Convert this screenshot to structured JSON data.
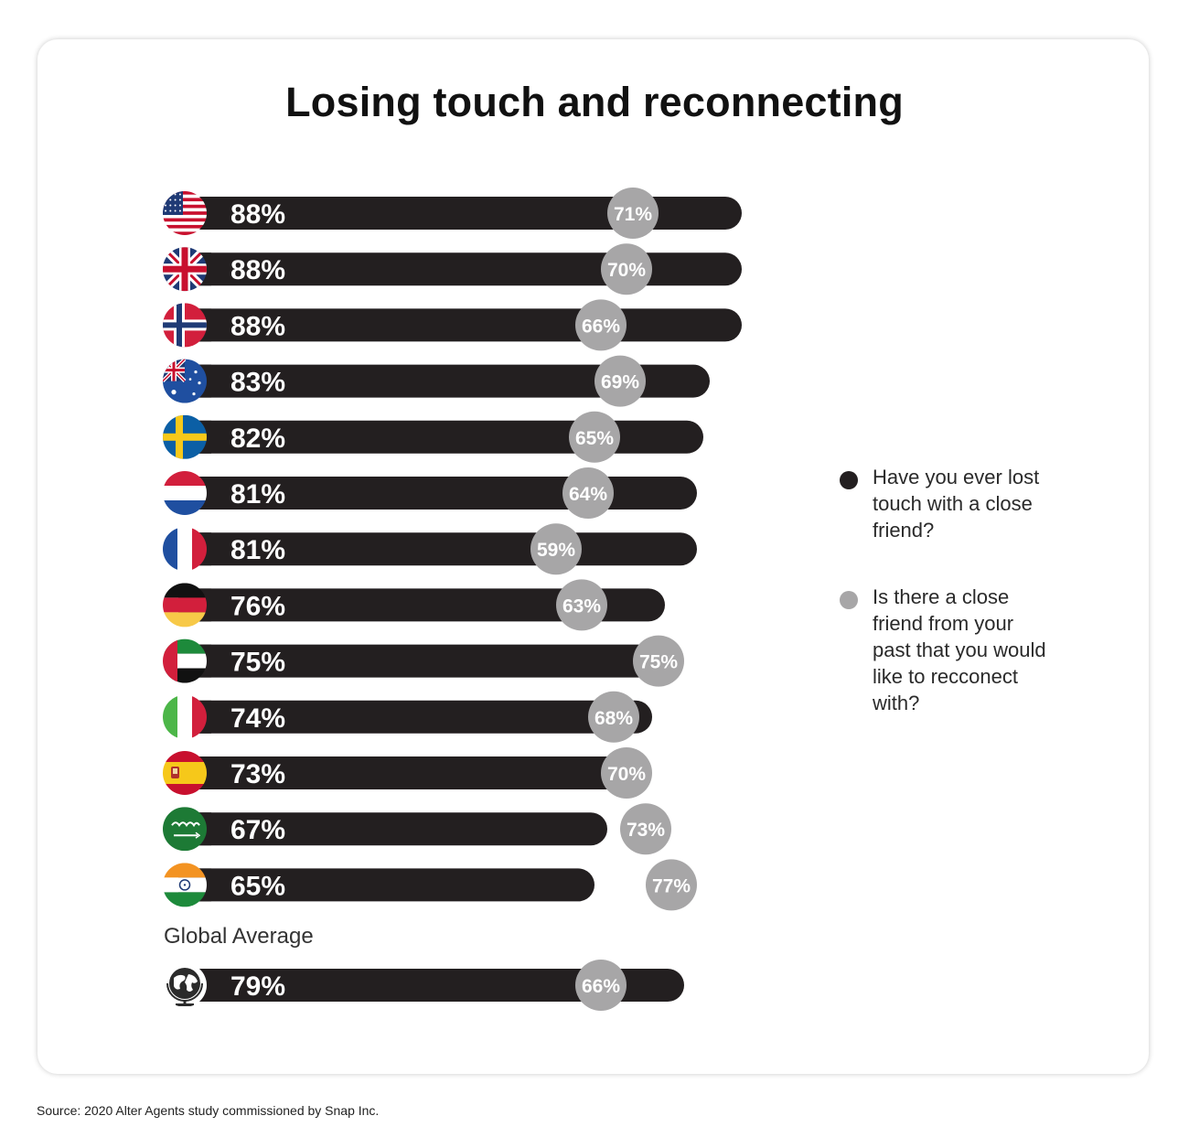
{
  "title": "Losing touch and reconnecting",
  "chart_data": {
    "type": "bar",
    "categories": [
      "USA",
      "UK",
      "Norway",
      "Australia",
      "Sweden",
      "Netherlands",
      "France",
      "Germany",
      "UAE",
      "Italy",
      "Spain",
      "Saudi Arabia",
      "India"
    ],
    "series": [
      {
        "name": "Have you ever lost touch with a close friend?",
        "color": "#231f20",
        "values": [
          88,
          88,
          88,
          83,
          82,
          81,
          81,
          76,
          75,
          74,
          73,
          67,
          65
        ],
        "labels": [
          "88%",
          "88%",
          "88%",
          "83%",
          "82%",
          "81%",
          "81%",
          "76%",
          "75%",
          "74%",
          "73%",
          "67%",
          "65%"
        ]
      },
      {
        "name": "Is there a close friend from your past that you would like to recconect with?",
        "color": "#a7a6a7",
        "values": [
          71,
          70,
          66,
          69,
          65,
          64,
          59,
          63,
          75,
          68,
          70,
          73,
          77
        ],
        "labels": [
          "71%",
          "70%",
          "66%",
          "69%",
          "65%",
          "64%",
          "59%",
          "63%",
          "75%",
          "68%",
          "70%",
          "73%",
          "77%"
        ]
      }
    ],
    "global_average": {
      "label": "Global Average",
      "values": [
        79,
        66
      ],
      "labels": [
        "79%",
        "66%"
      ]
    },
    "flag_icons": [
      "us-flag-icon",
      "uk-flag-icon",
      "norway-flag-icon",
      "australia-flag-icon",
      "sweden-flag-icon",
      "netherlands-flag-icon",
      "france-flag-icon",
      "germany-flag-icon",
      "uae-flag-icon",
      "italy-flag-icon",
      "spain-flag-icon",
      "saudi-arabia-flag-icon",
      "india-flag-icon"
    ],
    "global_icon": "globe-icon",
    "legend_placement": "right",
    "grid": false
  },
  "legend": {
    "items": [
      {
        "text": "Have you ever lost touch with a close friend?",
        "color": "#231f20"
      },
      {
        "text": "Is there a close friend from your past that you would like to recconect with?",
        "color": "#a7a6a7"
      }
    ]
  },
  "source": "Source: 2020 Alter Agents study commissioned by Snap Inc."
}
